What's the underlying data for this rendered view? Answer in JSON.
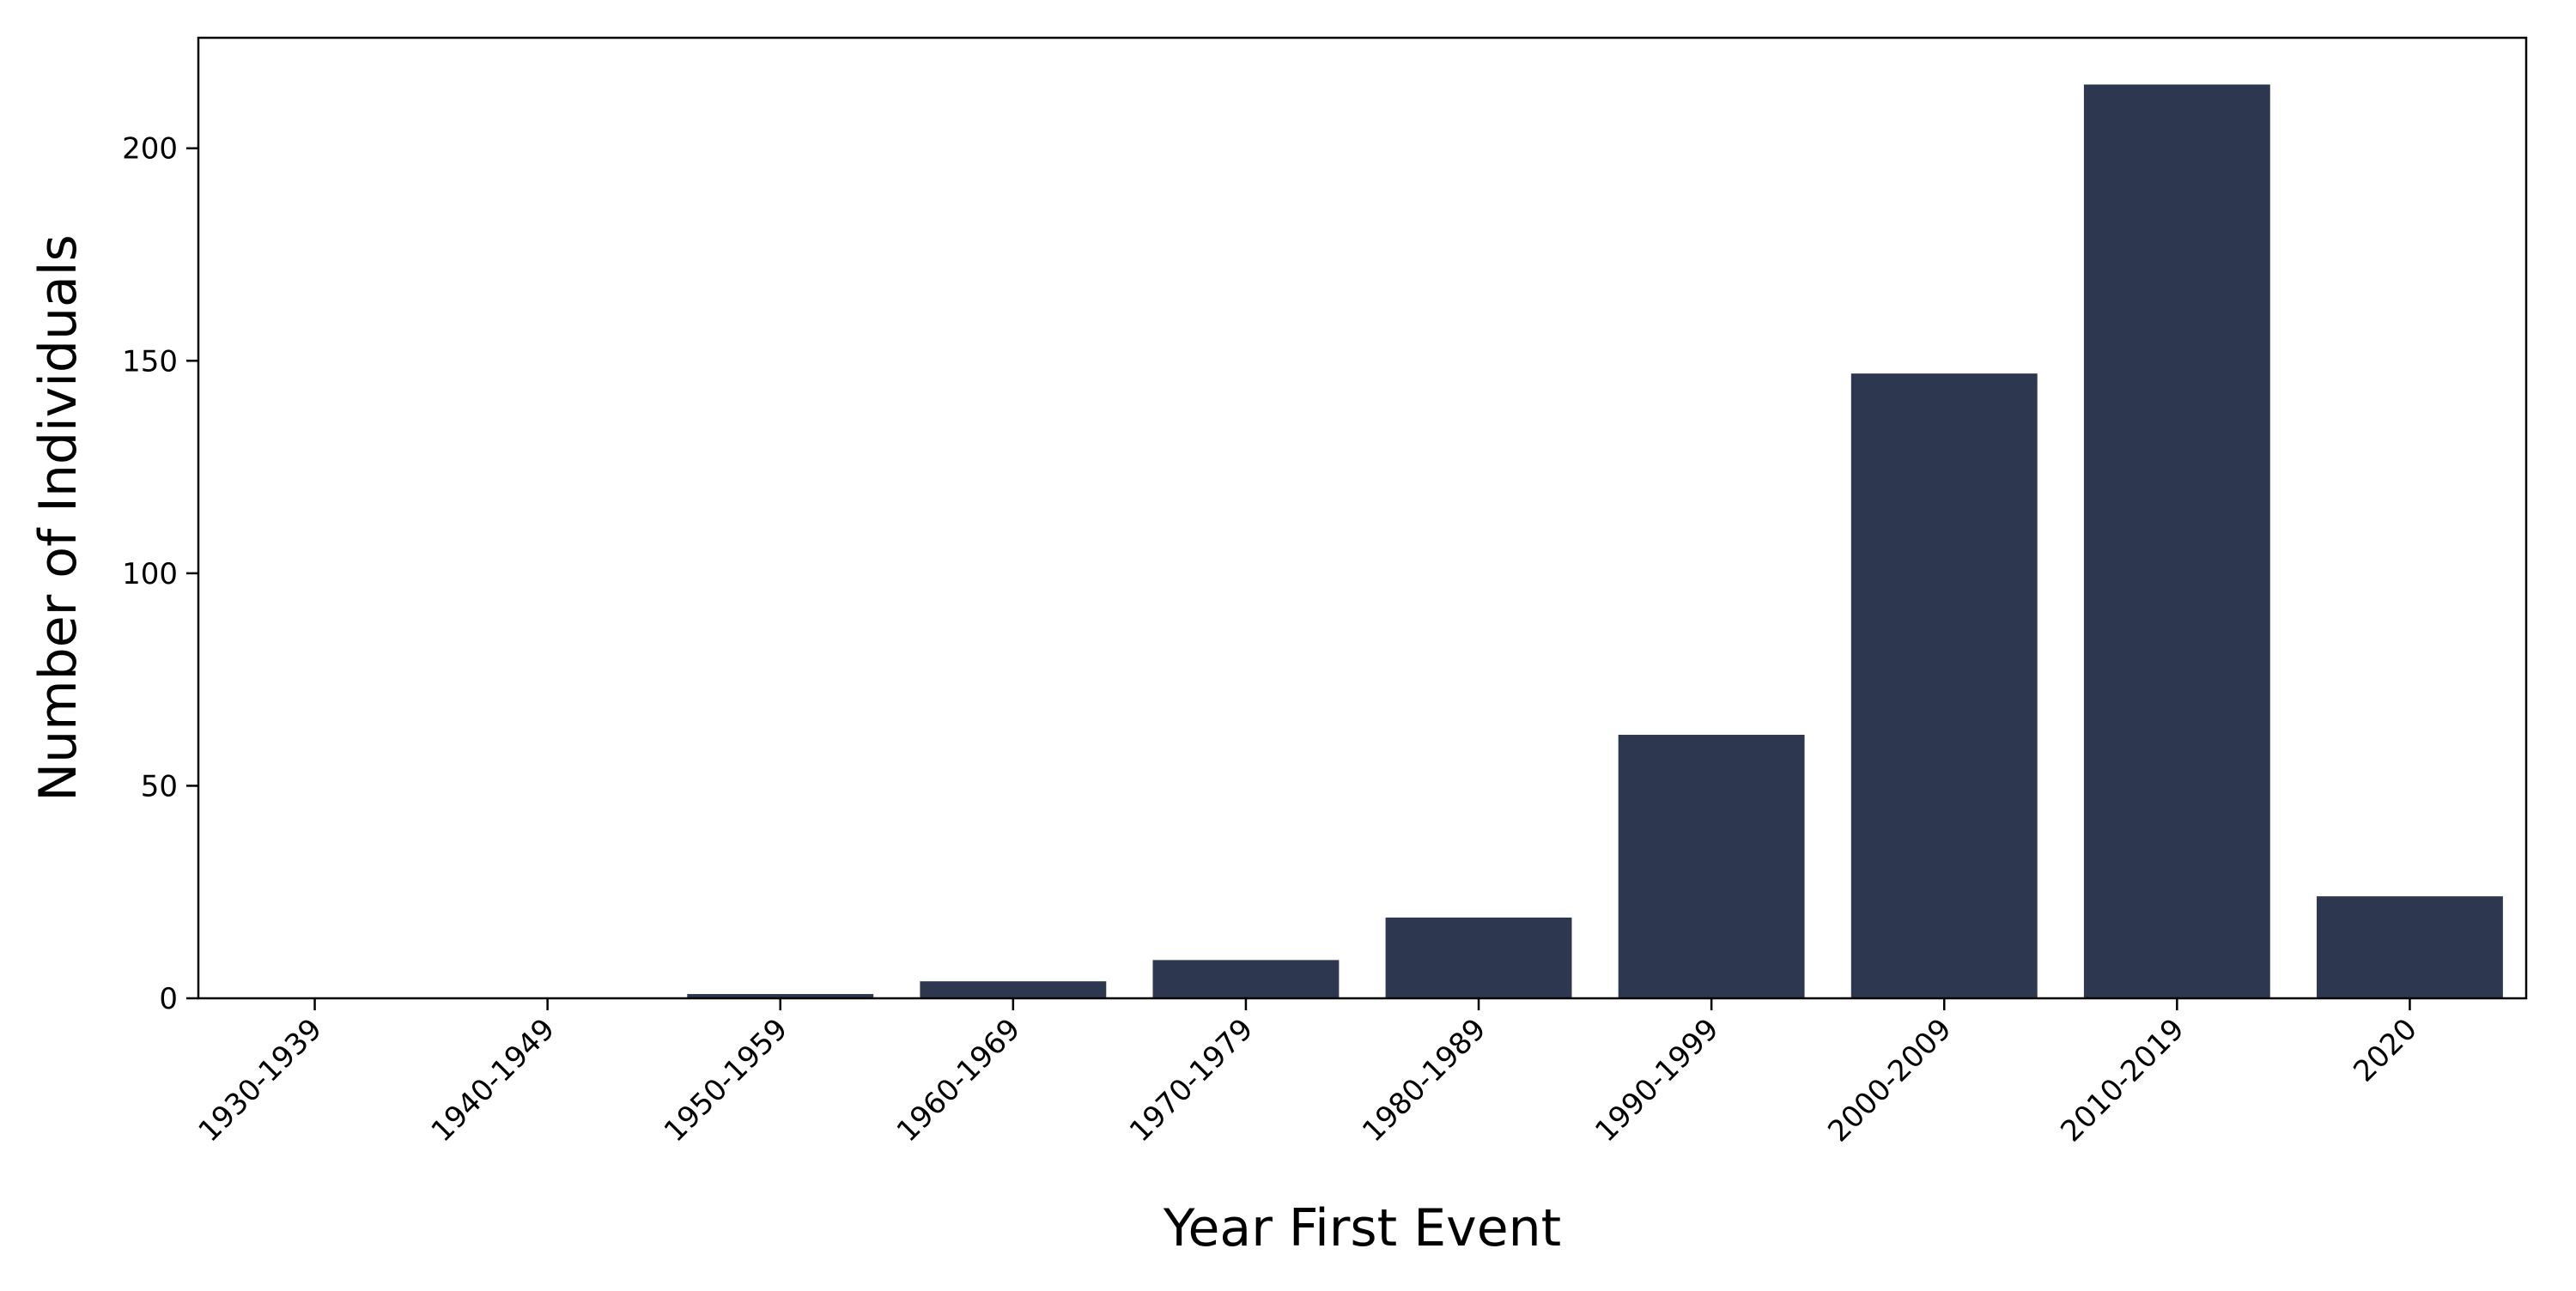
{
  "chart_data": {
    "type": "bar",
    "title": "",
    "xlabel": "Year First Event",
    "ylabel": "Number of Individuals",
    "categories": [
      "1930-1939",
      "1940-1949",
      "1950-1959",
      "1960-1969",
      "1970-1979",
      "1980-1989",
      "1990-1999",
      "2000-2009",
      "2010-2019",
      "2020"
    ],
    "values": [
      0,
      0,
      1,
      4,
      9,
      19,
      62,
      147,
      215,
      24
    ],
    "ylim": [
      0,
      226
    ],
    "yticks": [
      0,
      50,
      100,
      150,
      200
    ],
    "grid": false,
    "legend": "none",
    "bar_color": "#2d3850"
  }
}
